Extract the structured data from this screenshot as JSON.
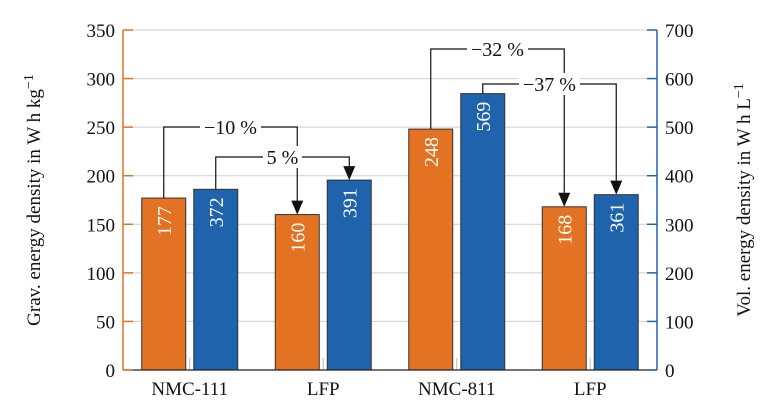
{
  "chart_data": {
    "type": "bar",
    "categories": [
      "NMC-111",
      "LFP",
      "NMC-811",
      "LFP"
    ],
    "series": [
      {
        "axis": "left",
        "color": "#e37222",
        "values": [
          177,
          160,
          248,
          168
        ]
      },
      {
        "axis": "right",
        "color": "#1f63ac",
        "values": [
          372,
          391,
          569,
          361
        ]
      }
    ],
    "ylabel": "Grav. energy density in W h kg",
    "ylabel_sup": "−1",
    "y2label": "Vol. energy density in W h L",
    "y2label_sup": "−1",
    "ylim": [
      0,
      350
    ],
    "y2lim": [
      0,
      700
    ],
    "yticks": [
      0,
      50,
      100,
      150,
      200,
      250,
      300,
      350
    ],
    "y2ticks": [
      0,
      100,
      200,
      300,
      400,
      500,
      600,
      700
    ],
    "grid": true,
    "left_axis_color": "#e37222",
    "right_axis_color": "#1f63ac",
    "annotations": [
      {
        "text": "−10 %",
        "from": [
          0,
          0
        ],
        "to": [
          1,
          0
        ]
      },
      {
        "text": "5 %",
        "from": [
          0,
          1
        ],
        "to": [
          1,
          1
        ]
      },
      {
        "text": "−32 %",
        "from": [
          2,
          0
        ],
        "to": [
          3,
          0
        ]
      },
      {
        "text": "−37 %",
        "from": [
          2,
          1
        ],
        "to": [
          3,
          1
        ]
      }
    ]
  }
}
